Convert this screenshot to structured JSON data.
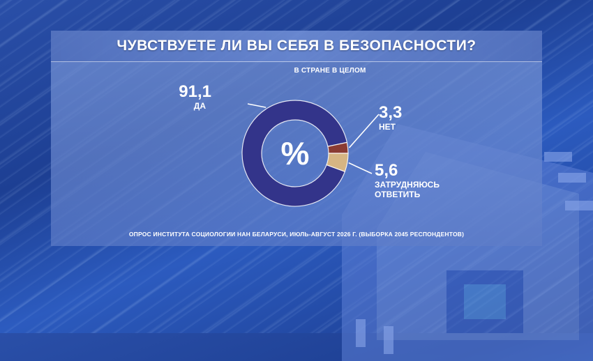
{
  "title": "ЧУВСТВУЕТЕ ЛИ ВЫ СЕБЯ В БЕЗОПАСНОСТИ?",
  "subtitle": "В СТРАНЕ В ЦЕЛОМ",
  "footer": "ОПРОС ИНСТИТУТА СОЦИОЛОГИИ НАН БЕЛАРУСИ, ИЮЛЬ-АВГУСТ 2026 Г. (ВЫБОРКА 2045 РЕСПОНДЕНТОВ)",
  "center_symbol": "%",
  "chart_data": {
    "type": "pie",
    "title": "ЧУВСТВУЕТЕ ЛИ ВЫ СЕБЯ В БЕЗОПАСНОСТИ?",
    "subtitle": "В СТРАНЕ В ЦЕЛОМ",
    "unit": "%",
    "donut": true,
    "slices": [
      {
        "label": "ДА",
        "label_lines": [
          "ДА"
        ],
        "value": 91.1,
        "value_text": "91,1",
        "color": "#33348a"
      },
      {
        "label": "НЕТ",
        "label_lines": [
          "НЕТ"
        ],
        "value": 3.3,
        "value_text": "3,3",
        "color": "#8a3b32"
      },
      {
        "label": "ЗАТРУДНЯЮСЬ ОТВЕТИТЬ",
        "label_lines": [
          "ЗАТРУДНЯЮСЬ",
          "ОТВЕТИТЬ"
        ],
        "value": 5.6,
        "value_text": "5,6",
        "color": "#d6b583"
      }
    ]
  }
}
